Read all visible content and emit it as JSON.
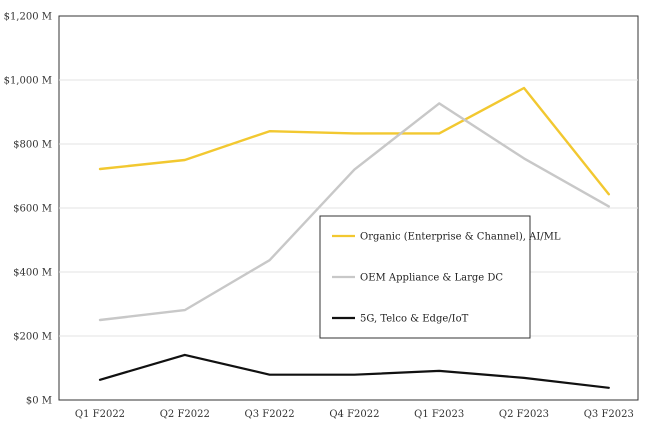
{
  "chart_data": {
    "type": "line",
    "title": "",
    "xlabel": "",
    "ylabel": "",
    "categories": [
      "Q1 F2022",
      "Q2 F2022",
      "Q3 F2022",
      "Q4 F2022",
      "Q1 F2023",
      "Q2 F2023",
      "Q3 F2023"
    ],
    "ylim": [
      0,
      1200
    ],
    "yticks": [
      0,
      200,
      400,
      600,
      800,
      1000,
      1200
    ],
    "ytick_labels": [
      "$0 M",
      "$200 M",
      "$400 M",
      "$600 M",
      "$800 M",
      "$1,000 M",
      "$1,200 M"
    ],
    "grid": true,
    "legend_position": "center-right",
    "series": [
      {
        "name": "Organic (Enterprise & Channel), AI/ML",
        "color": "#F2C830",
        "values": [
          722,
          750,
          840,
          833,
          833,
          975,
          643
        ]
      },
      {
        "name": "OEM Appliance & Large DC",
        "color": "#C8C8C8",
        "values": [
          250,
          281,
          437,
          720,
          927,
          755,
          605
        ]
      },
      {
        "name": "5G, Telco & Edge/IoT",
        "color": "#111111",
        "values": [
          63,
          141,
          79,
          79,
          91,
          69,
          38
        ]
      }
    ]
  }
}
